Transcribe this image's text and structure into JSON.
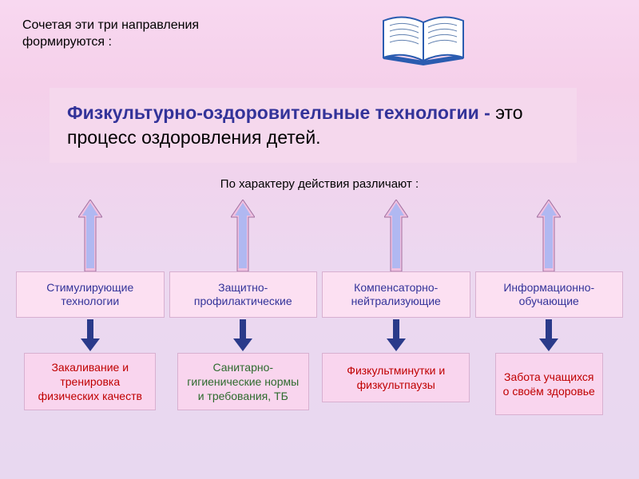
{
  "intro_text": "Сочетая эти три направления формируются :",
  "main_bold": "Физкультурно-оздоровительные технологии - ",
  "main_rest": "это процесс оздоровления детей.",
  "subtitle": "По характеру действия различают :",
  "book": {
    "cover_color": "#2a5cb0",
    "page_color": "#ffffff",
    "line_color": "#6080b0"
  },
  "arrow_style": {
    "up_fill": "#f0c0e0",
    "up_stroke": "#a070a0",
    "up_inner_fill": "#7bb0ff",
    "down_fill": "#2a3a8a"
  },
  "columns": [
    {
      "category": "Стимулирующие технологии",
      "example": "Закаливание и тренировка физических качеств",
      "example_color": "#c00000",
      "example_width": 165,
      "example_height": 72
    },
    {
      "category": "Защитно-профилактические",
      "example": "Санитарно-гигиенические нормы и требования, ТБ",
      "example_color": "#2e6b2e",
      "example_width": 165,
      "example_height": 72
    },
    {
      "category": "Компенсаторно-нейтрализующие",
      "example": "Физкультминутки и физкультпаузы",
      "example_color": "#c00000",
      "example_width": 185,
      "example_height": 62
    },
    {
      "category": "Информационно-обучающие",
      "example": "Забота учащихся о своём здоровье",
      "example_color": "#c00000",
      "example_width": 135,
      "example_height": 78
    }
  ],
  "colors": {
    "bg_top": "#f8d8f0",
    "bg_bottom": "#e8d8f0",
    "pink_box": "#f5d8ed",
    "light_pink": "#fce0f2",
    "border": "#d8b0d0",
    "heading_blue": "#333399"
  },
  "typography": {
    "intro_fontsize": 16,
    "main_fontsize": 23,
    "subtitle_fontsize": 15,
    "box_fontsize": 14
  }
}
